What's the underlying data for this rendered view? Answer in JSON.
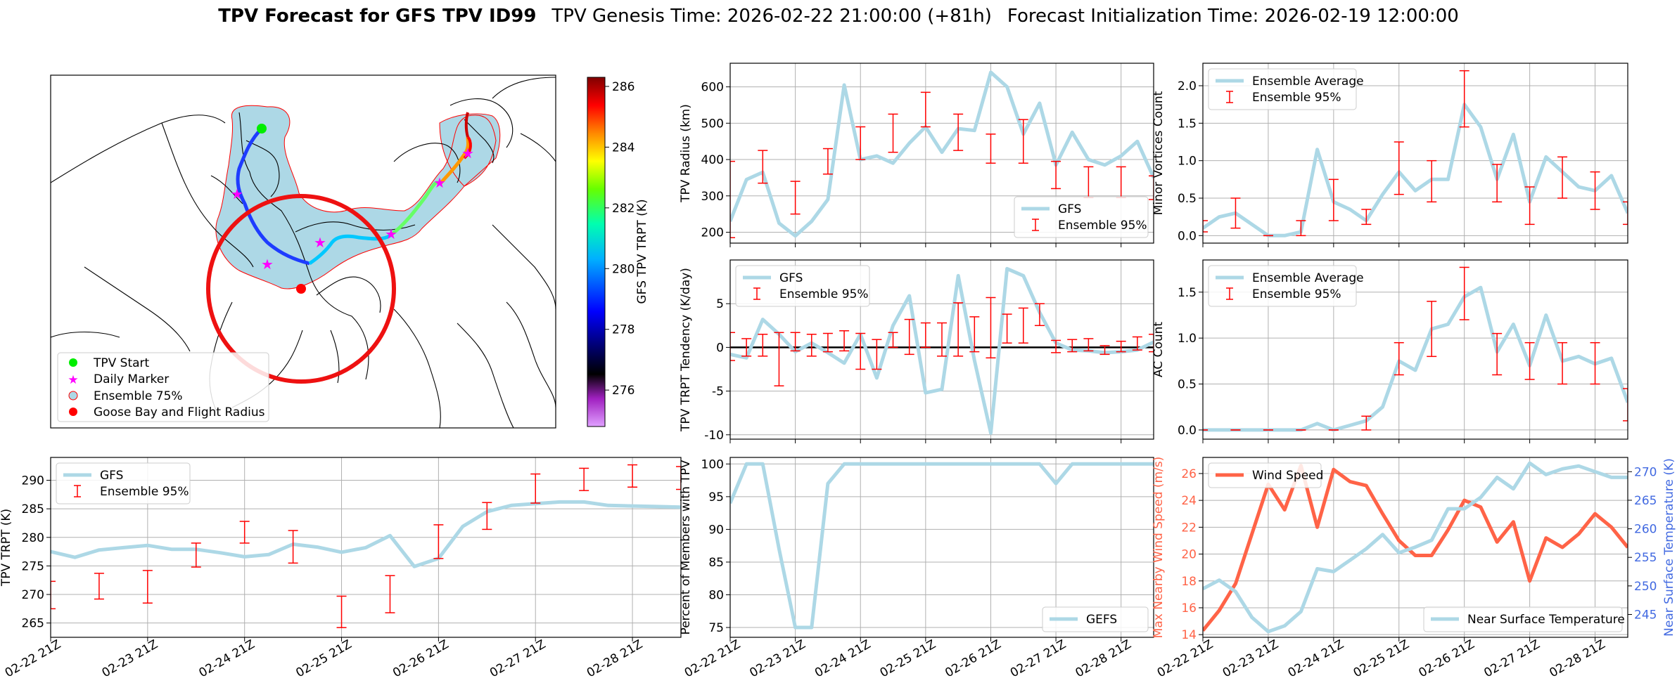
{
  "title": {
    "bold": "TPV Forecast for GFS TPV ID99",
    "genesis": "TPV Genesis Time: 2026-02-22 21:00:00 (+81h)",
    "init": "Forecast Initialization Time: 2026-02-19 12:00:00"
  },
  "colors": {
    "gfs": "#add8e6",
    "ensemble": "#ff0000",
    "wind": "#ff6347",
    "temp_axis": "#4169e1",
    "green": "#00ee00",
    "magenta": "#ff00ff",
    "circle": "#ee1111"
  },
  "map_panel": {
    "legend": [
      "TPV Start",
      "Daily Marker",
      "Ensemble 75%",
      "Goose Bay and Flight Radius"
    ],
    "colorbar": {
      "label": "GFS TPV TRPT (K)",
      "ticks": [
        276,
        278,
        280,
        282,
        284,
        286
      ],
      "range": [
        274.8,
        286.3
      ]
    }
  },
  "x_dates": [
    "02-22 21Z",
    "02-23 21Z",
    "02-24 21Z",
    "02-25 21Z",
    "02-26 21Z",
    "02-27 21Z",
    "02-28 21Z"
  ],
  "chart_data": [
    {
      "id": "trpt",
      "type": "line",
      "ylabel": "TPV TRPT (K)",
      "ylim": [
        262.5,
        294
      ],
      "yticks": [
        265,
        270,
        275,
        280,
        285,
        290
      ],
      "xlim": [
        0,
        6.5
      ],
      "series": [
        {
          "name": "GFS",
          "x": [
            0,
            0.25,
            0.5,
            0.75,
            1,
            1.25,
            1.5,
            1.75,
            2,
            2.25,
            2.5,
            2.75,
            3,
            3.25,
            3.5,
            3.75,
            4,
            4.25,
            4.5,
            4.75,
            5,
            5.25,
            5.5,
            5.75,
            6,
            6.25,
            6.5
          ],
          "values": [
            277.5,
            276.5,
            277.8,
            278.2,
            278.6,
            277.9,
            277.9,
            277.3,
            276.6,
            277.0,
            278.8,
            278.3,
            277.4,
            278.2,
            280.3,
            274.9,
            276.3,
            281.9,
            284.5,
            285.6,
            285.9,
            286.2,
            286.2,
            285.6,
            285.5,
            285.4,
            285.3
          ]
        },
        {
          "name": "Ensemble 95%",
          "kind": "errorbar",
          "x": [
            0,
            0.5,
            1,
            1.5,
            2,
            2.5,
            3,
            3.5,
            4,
            4.5,
            5,
            5.5,
            6,
            6.5
          ],
          "lo": [
            267.5,
            269.2,
            268.5,
            274.8,
            279.0,
            275.5,
            264.2,
            266.8,
            276.3,
            281.4,
            286.0,
            288.2,
            288.8,
            288.4
          ],
          "hi": [
            272.3,
            273.7,
            274.2,
            279.0,
            282.8,
            281.2,
            269.7,
            273.3,
            282.2,
            286.1,
            291.1,
            292.1,
            292.7,
            292.4
          ]
        }
      ]
    },
    {
      "id": "radius",
      "type": "line",
      "ylabel": "TPV Radius (km)",
      "ylim": [
        170,
        665
      ],
      "yticks": [
        200,
        300,
        400,
        500,
        600
      ],
      "xlim": [
        0,
        6.5
      ],
      "series": [
        {
          "name": "GFS",
          "x": [
            0,
            0.25,
            0.5,
            0.75,
            1,
            1.25,
            1.5,
            1.75,
            2,
            2.25,
            2.5,
            2.75,
            3,
            3.25,
            3.5,
            3.75,
            4,
            4.25,
            4.5,
            4.75,
            5,
            5.25,
            5.5,
            5.75,
            6,
            6.25,
            6.5
          ],
          "values": [
            230,
            345,
            365,
            225,
            190,
            230,
            290,
            605,
            400,
            410,
            390,
            445,
            490,
            420,
            485,
            480,
            640,
            600,
            470,
            555,
            385,
            475,
            400,
            385,
            410,
            450,
            350
          ]
        },
        {
          "name": "Ensemble 95%",
          "kind": "errorbar",
          "x": [
            0,
            0.5,
            1,
            1.5,
            2,
            2.5,
            3,
            3.5,
            4,
            4.5,
            5,
            5.5,
            6,
            6.5
          ],
          "lo": [
            185,
            335,
            250,
            360,
            400,
            420,
            490,
            425,
            390,
            390,
            320,
            295,
            295,
            290
          ],
          "hi": [
            395,
            425,
            340,
            430,
            490,
            525,
            585,
            525,
            470,
            510,
            395,
            380,
            380,
            355
          ]
        }
      ]
    },
    {
      "id": "minor",
      "type": "line",
      "ylabel": "Minor Vortices Count",
      "ylim": [
        -0.1,
        2.3
      ],
      "yticks": [
        0.0,
        0.5,
        1.0,
        1.5,
        2.0
      ],
      "xlim": [
        0,
        6.5
      ],
      "series": [
        {
          "name": "Ensemble Average",
          "x": [
            0,
            0.25,
            0.5,
            0.75,
            1,
            1.25,
            1.5,
            1.75,
            2,
            2.25,
            2.5,
            2.75,
            3,
            3.25,
            3.5,
            3.75,
            4,
            4.25,
            4.5,
            4.75,
            5,
            5.25,
            5.5,
            5.75,
            6,
            6.25,
            6.5
          ],
          "values": [
            0.1,
            0.25,
            0.3,
            0.15,
            0.0,
            0.0,
            0.05,
            1.15,
            0.45,
            0.35,
            0.2,
            0.55,
            0.85,
            0.6,
            0.75,
            0.75,
            1.75,
            1.45,
            0.75,
            1.35,
            0.45,
            1.05,
            0.85,
            0.65,
            0.6,
            0.8,
            0.3
          ]
        },
        {
          "name": "Ensemble 95%",
          "kind": "errorbar",
          "x": [
            0,
            0.5,
            1,
            1.5,
            2,
            2.5,
            3,
            3.5,
            4,
            4.5,
            5,
            5.5,
            6,
            6.5
          ],
          "lo": [
            0.05,
            0.1,
            0.0,
            0.0,
            0.2,
            0.15,
            0.55,
            0.45,
            1.45,
            0.45,
            0.15,
            0.5,
            0.35,
            0.15
          ],
          "hi": [
            0.2,
            0.5,
            0.0,
            0.2,
            0.75,
            0.35,
            1.25,
            1.0,
            2.2,
            0.95,
            0.65,
            1.05,
            0.85,
            0.45
          ]
        }
      ]
    },
    {
      "id": "tendency",
      "type": "line",
      "ylabel": "TPV TRPT Tendency (K/day)",
      "ylim": [
        -10.5,
        10
      ],
      "yticks": [
        -10,
        -5,
        0,
        5
      ],
      "xlim": [
        0,
        6.5
      ],
      "series": [
        {
          "name": "GFS",
          "x": [
            0,
            0.25,
            0.5,
            0.75,
            1,
            1.25,
            1.5,
            1.75,
            2,
            2.25,
            2.5,
            2.75,
            3,
            3.25,
            3.5,
            3.75,
            4,
            4.25,
            4.5,
            4.75,
            5,
            5.25,
            5.5,
            5.75,
            6,
            6.25,
            6.5
          ],
          "values": [
            -0.8,
            -1.2,
            3.2,
            1.5,
            -0.5,
            0.5,
            -0.6,
            -1.8,
            1.5,
            -3.5,
            2.5,
            5.9,
            -5.2,
            -4.8,
            8.2,
            -1.5,
            -9.8,
            9.0,
            8.2,
            4.0,
            0.5,
            -0.3,
            -0.4,
            -0.6,
            -0.5,
            -0.3,
            0.6
          ]
        },
        {
          "name": "Ensemble 95%",
          "kind": "errorbar",
          "x": [
            0,
            0.25,
            0.5,
            0.75,
            1,
            1.25,
            1.5,
            1.75,
            2,
            2.25,
            2.5,
            2.75,
            3,
            3.25,
            3.5,
            3.75,
            4,
            4.25,
            4.5,
            4.75,
            5,
            5.25,
            5.5,
            5.75,
            6,
            6.25,
            6.5
          ],
          "lo": [
            -1.5,
            -1.0,
            -1.0,
            -4.4,
            -0.4,
            -1.0,
            -0.5,
            -0.4,
            -2.5,
            -2.5,
            0.0,
            -0.8,
            0.0,
            -1.0,
            -1.0,
            -0.5,
            -1.2,
            0.5,
            0.5,
            2.5,
            -0.6,
            -0.5,
            -0.4,
            -0.8,
            -0.5,
            -0.3,
            -0.5
          ],
          "hi": [
            1.7,
            1.0,
            1.5,
            1.7,
            1.7,
            1.5,
            1.6,
            1.9,
            1.6,
            0.9,
            1.7,
            3.2,
            2.8,
            2.8,
            5.1,
            3.5,
            5.7,
            3.8,
            4.5,
            5.0,
            0.8,
            0.9,
            1.0,
            0.2,
            0.7,
            1.2,
            1.5
          ]
        }
      ]
    },
    {
      "id": "ac",
      "type": "line",
      "ylabel": "AC Count",
      "ylim": [
        -0.1,
        1.85
      ],
      "yticks": [
        0.0,
        0.5,
        1.0,
        1.5
      ],
      "xlim": [
        0,
        6.5
      ],
      "series": [
        {
          "name": "Ensemble Average",
          "x": [
            0,
            0.25,
            0.5,
            0.75,
            1,
            1.25,
            1.5,
            1.75,
            2,
            2.25,
            2.5,
            2.75,
            3,
            3.25,
            3.5,
            3.75,
            4,
            4.25,
            4.5,
            4.75,
            5,
            5.25,
            5.5,
            5.75,
            6,
            6.25,
            6.5
          ],
          "values": [
            0.0,
            0.0,
            0.0,
            0.0,
            0.0,
            0.0,
            0.0,
            0.07,
            0.0,
            0.05,
            0.1,
            0.25,
            0.75,
            0.65,
            1.1,
            1.15,
            1.45,
            1.55,
            0.85,
            1.15,
            0.7,
            1.25,
            0.75,
            0.8,
            0.72,
            0.78,
            0.3
          ]
        },
        {
          "name": "Ensemble 95%",
          "kind": "errorbar",
          "x": [
            0,
            0.5,
            1,
            1.5,
            2,
            2.5,
            3,
            3.5,
            4,
            4.5,
            5,
            5.5,
            6,
            6.5
          ],
          "lo": [
            0.0,
            0.0,
            0.0,
            0.0,
            0.0,
            0.0,
            0.6,
            0.8,
            1.2,
            0.6,
            0.55,
            0.5,
            0.5,
            0.1
          ],
          "hi": [
            0.0,
            0.0,
            0.0,
            0.0,
            0.0,
            0.15,
            0.95,
            1.4,
            1.77,
            1.05,
            0.95,
            0.95,
            0.95,
            0.45
          ]
        }
      ]
    },
    {
      "id": "members",
      "type": "line",
      "ylabel": "Percent of Members with TPV",
      "ylim": [
        73.5,
        101
      ],
      "yticks": [
        75,
        80,
        85,
        90,
        95,
        100
      ],
      "xlim": [
        0,
        6.5
      ],
      "series": [
        {
          "name": "GEFS",
          "x": [
            0,
            0.25,
            0.5,
            0.75,
            1,
            1.25,
            1.5,
            1.75,
            2,
            2.25,
            2.5,
            2.75,
            3,
            3.25,
            3.5,
            3.75,
            4,
            4.25,
            4.5,
            4.75,
            5,
            5.25,
            5.5,
            5.75,
            6,
            6.25,
            6.5
          ],
          "values": [
            94,
            100,
            100,
            87,
            75,
            75,
            97,
            100,
            100,
            100,
            100,
            100,
            100,
            100,
            100,
            100,
            100,
            100,
            100,
            100,
            97,
            100,
            100,
            100,
            100,
            100,
            100
          ]
        }
      ]
    },
    {
      "id": "wind_temp",
      "type": "line",
      "ylabel": "Max Nearby Wind Speed (m/s)",
      "y2label": "Near Surface Temperature (K)",
      "ylim": [
        13.8,
        27.2
      ],
      "yticks": [
        14,
        16,
        18,
        20,
        22,
        24,
        26
      ],
      "y2lim": [
        241,
        272.5
      ],
      "y2ticks": [
        245,
        250,
        255,
        260,
        265,
        270
      ],
      "xlim": [
        0,
        6.5
      ],
      "series": [
        {
          "name": "Wind Speed",
          "axis": "left",
          "x": [
            0,
            0.25,
            0.5,
            0.75,
            1,
            1.25,
            1.5,
            1.75,
            2,
            2.25,
            2.5,
            2.75,
            3,
            3.25,
            3.5,
            3.75,
            4,
            4.25,
            4.5,
            4.75,
            5,
            5.25,
            5.5,
            5.75,
            6,
            6.25,
            6.5
          ],
          "values": [
            14.3,
            15.8,
            17.8,
            21.5,
            25.2,
            23.3,
            26.6,
            22.0,
            26.3,
            25.4,
            25.1,
            23.0,
            21.0,
            19.9,
            19.9,
            21.8,
            24.0,
            23.5,
            20.9,
            22.4,
            18.0,
            21.2,
            20.5,
            21.5,
            23.0,
            22.0,
            20.5
          ]
        },
        {
          "name": "Near Surface Temperature",
          "axis": "right",
          "x": [
            0,
            0.25,
            0.5,
            0.75,
            1,
            1.25,
            1.5,
            1.75,
            2,
            2.25,
            2.5,
            2.75,
            3,
            3.25,
            3.5,
            3.75,
            4,
            4.25,
            4.5,
            4.75,
            5,
            5.25,
            5.5,
            5.75,
            6,
            6.25,
            6.5
          ],
          "values": [
            249.5,
            251.0,
            249.0,
            244.5,
            242.0,
            243.0,
            245.5,
            253.0,
            252.5,
            254.5,
            256.5,
            259.0,
            255.8,
            256.8,
            258.0,
            263.5,
            263.5,
            265.5,
            269.0,
            267.0,
            271.5,
            269.5,
            270.5,
            271.0,
            270.0,
            269.0,
            269.0
          ]
        }
      ]
    }
  ],
  "legends": {
    "trpt": [
      "GFS",
      "Ensemble 95%"
    ],
    "radius": [
      "GFS",
      "Ensemble 95%"
    ],
    "minor": [
      "Ensemble Average",
      "Ensemble 95%"
    ],
    "tendency": [
      "GFS",
      "Ensemble 95%"
    ],
    "ac": [
      "Ensemble Average",
      "Ensemble 95%"
    ],
    "members": [
      "GEFS"
    ],
    "wind": [
      "Wind Speed"
    ],
    "temp": [
      "Near Surface Temperature"
    ]
  }
}
